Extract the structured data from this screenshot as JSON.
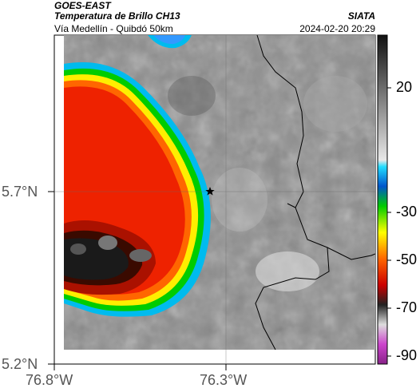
{
  "header": {
    "title_line1": "GOES-EAST",
    "title_line2": "Temperatura de Brillo CH13",
    "subtitle": "Vía Medellín - Quibdó 50km",
    "source": "SIATA",
    "datetime": "2024-02-20 20:29"
  },
  "axes": {
    "y_ticks": [
      "5.7°N",
      "5.2°N"
    ],
    "x_ticks": [
      "76.8°W",
      "76.3°W"
    ]
  },
  "colorbar": {
    "labels": [
      "20",
      "-30",
      "-50",
      "-70",
      "-90"
    ]
  },
  "colors": {
    "cold_core": "#1a1a1a",
    "red": "#ee2200",
    "yellow": "#ffee00",
    "green": "#00cc00",
    "cyan": "#00bbee",
    "gray_land": "#8a8a8a"
  }
}
